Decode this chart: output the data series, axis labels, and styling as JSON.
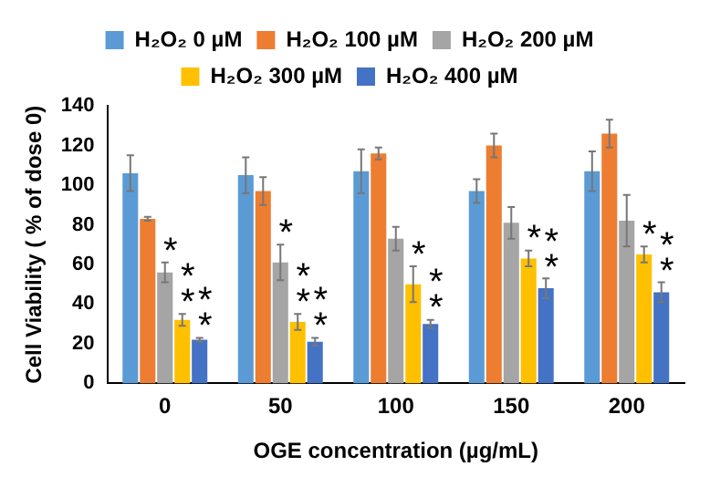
{
  "chart_data": {
    "type": "bar",
    "xlabel": "OGE concentration (µg/mL)",
    "ylabel": "Cell Viability ( % of dose 0)",
    "categories": [
      "0",
      "50",
      "100",
      "150",
      "200"
    ],
    "series": [
      {
        "name": "H₂O₂ 0 µM",
        "color": "#5b9bd5",
        "values": [
          106,
          105,
          107,
          97,
          107
        ],
        "errors": [
          9,
          9,
          11,
          6,
          10
        ]
      },
      {
        "name": "H₂O₂ 100 µM",
        "color": "#ed7d31",
        "values": [
          83,
          97,
          116,
          120,
          126
        ],
        "errors": [
          1,
          7,
          3,
          6,
          7
        ]
      },
      {
        "name": "H₂O₂ 200 µM",
        "color": "#a5a5a5",
        "values": [
          56,
          61,
          73,
          81,
          82
        ],
        "errors": [
          5,
          9,
          6,
          8,
          13
        ],
        "value_labels": [
          "*",
          "*",
          null,
          null,
          null
        ]
      },
      {
        "name": "H₂O₂ 300 µM",
        "color": "#ffc000",
        "values": [
          32,
          31,
          50,
          63,
          65
        ],
        "errors": [
          3,
          4,
          9,
          4,
          4
        ],
        "value_labels": [
          "**",
          "**",
          "*",
          "*",
          "*"
        ]
      },
      {
        "name": "H₂O₂ 400 µM",
        "color": "#4472c4",
        "values": [
          22,
          21,
          30,
          48,
          46
        ],
        "errors": [
          1,
          2,
          2,
          5,
          5
        ],
        "value_labels": [
          "**",
          "**",
          "**",
          "**",
          "**"
        ]
      }
    ],
    "ylim": [
      0,
      140
    ],
    "yticks": [
      0,
      20,
      40,
      60,
      80,
      100,
      120,
      140
    ],
    "grid": false,
    "legend": "top"
  }
}
